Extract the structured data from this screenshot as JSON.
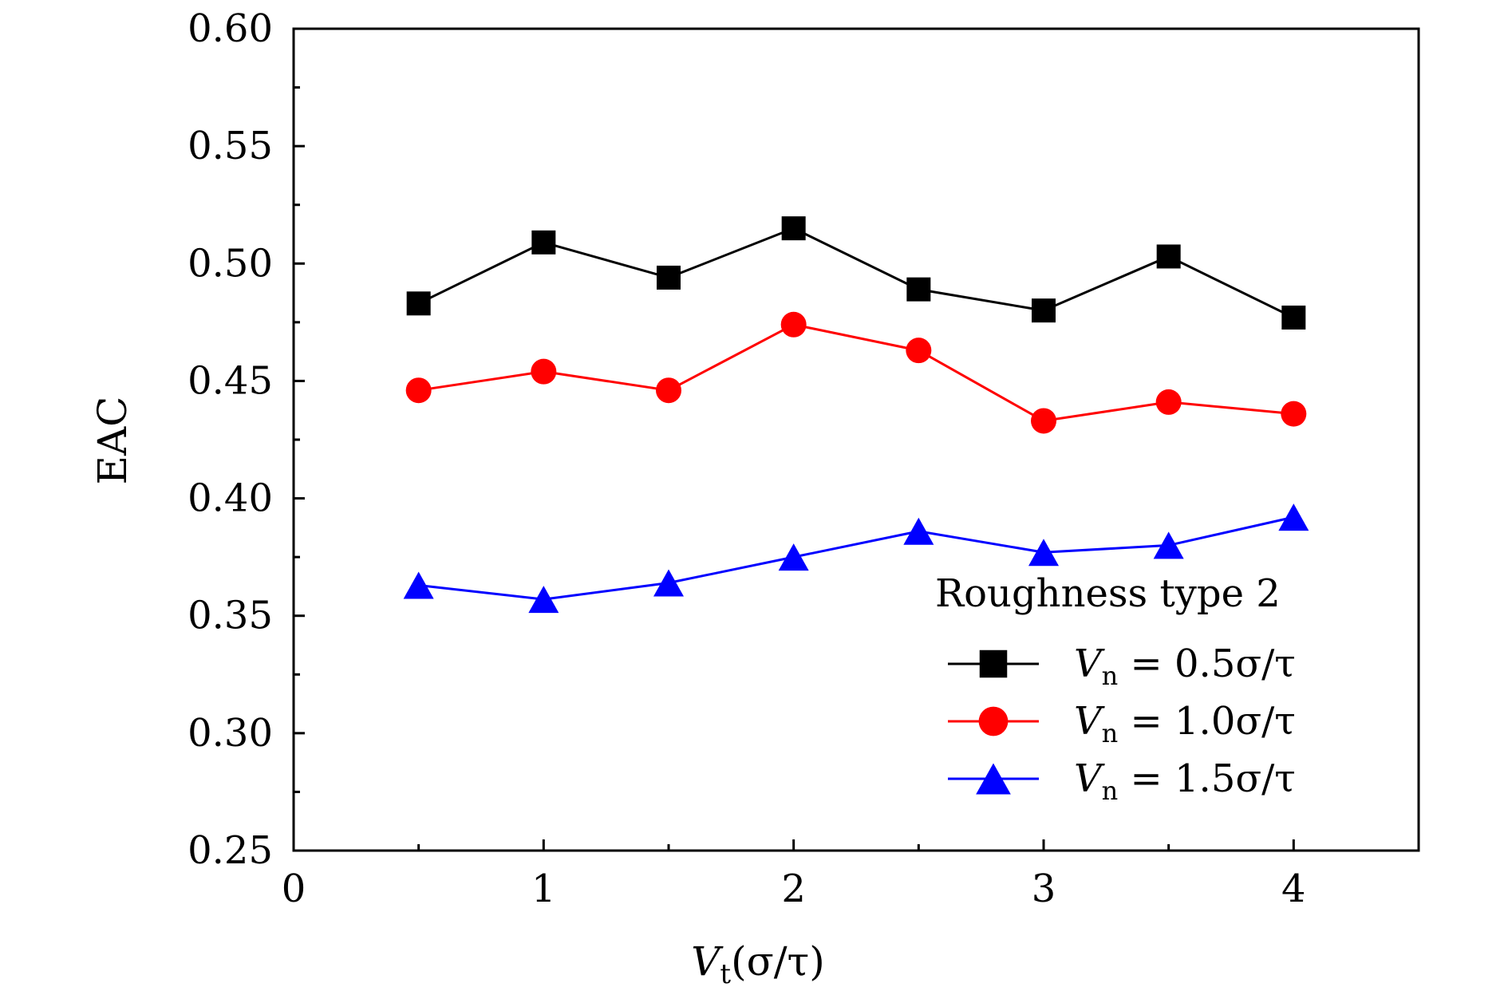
{
  "chart_data": {
    "type": "line",
    "title": "",
    "xlabel": {
      "main": "V",
      "sub": "t",
      "rest": "(σ/τ)"
    },
    "ylabel": "EAC",
    "xlim": [
      0,
      4.5
    ],
    "ylim": [
      0.25,
      0.6
    ],
    "xticks": [
      0,
      1,
      2,
      3,
      4
    ],
    "xtick_labels": [
      "0",
      "1",
      "2",
      "3",
      "4"
    ],
    "xminor": [
      0.5,
      1.5,
      2.5,
      3.5
    ],
    "yticks": [
      0.25,
      0.3,
      0.35,
      0.4,
      0.45,
      0.5,
      0.55,
      0.6
    ],
    "ytick_labels": [
      "0.25",
      "0.30",
      "0.35",
      "0.40",
      "0.45",
      "0.50",
      "0.55",
      "0.60"
    ],
    "yminor": [
      0.275,
      0.325,
      0.375,
      0.425,
      0.475,
      0.525,
      0.575
    ],
    "grid": false,
    "legend_title": "Roughness type 2",
    "legend_position": "bottom-right",
    "x": [
      0.5,
      1.0,
      1.5,
      2.0,
      2.5,
      3.0,
      3.5,
      4.0
    ],
    "series": [
      {
        "label": {
          "main": "V",
          "sub": "n",
          "rest": " = 0.5σ/τ"
        },
        "color": "#000000",
        "marker": "square",
        "values": [
          0.483,
          0.509,
          0.494,
          0.515,
          0.489,
          0.48,
          0.503,
          0.477
        ]
      },
      {
        "label": {
          "main": "V",
          "sub": "n",
          "rest": " = 1.0σ/τ"
        },
        "color": "#ff0000",
        "marker": "circle",
        "values": [
          0.446,
          0.454,
          0.446,
          0.474,
          0.463,
          0.433,
          0.441,
          0.436
        ]
      },
      {
        "label": {
          "main": "V",
          "sub": "n",
          "rest": " = 1.5σ/τ"
        },
        "color": "#0000ff",
        "marker": "triangle",
        "values": [
          0.363,
          0.357,
          0.364,
          0.375,
          0.386,
          0.377,
          0.38,
          0.392
        ]
      }
    ]
  }
}
